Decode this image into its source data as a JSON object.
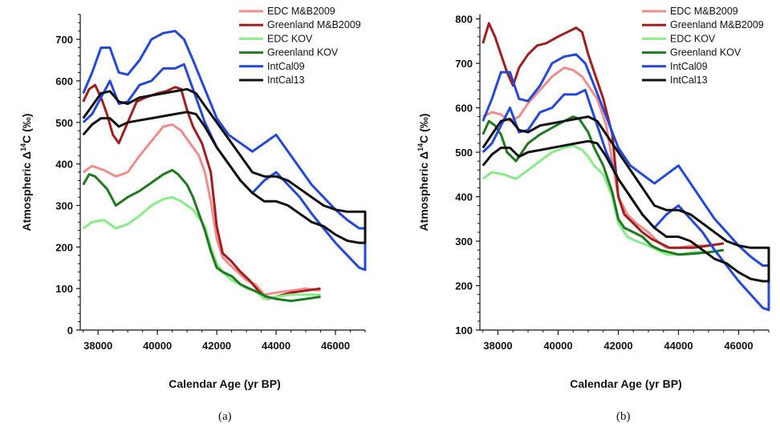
{
  "chart_data": [
    {
      "type": "line",
      "caption": "(a)",
      "xlabel": "Calendar Age (yr BP)",
      "ylabel": {
        "prefix": "Atmospheric Δ",
        "sup": "14",
        "suffix": "C (‰)"
      },
      "xlim": [
        37400,
        47000
      ],
      "ylim": [
        0,
        760
      ],
      "xticks": [
        38000,
        40000,
        42000,
        44000,
        46000
      ],
      "yticks": [
        0,
        100,
        200,
        300,
        400,
        500,
        600,
        700
      ],
      "grid": false,
      "legend": "top-right",
      "series": [
        {
          "name": "EDC M&B2009",
          "color": "#f08c8c",
          "x": [
            37500,
            37800,
            38200,
            38600,
            39000,
            39400,
            39800,
            40200,
            40500,
            40800,
            41000,
            41200,
            41400,
            41600,
            41800,
            42000,
            42200,
            42400,
            42700,
            43000,
            43300,
            43600,
            44000,
            44500,
            45000,
            45500
          ],
          "y": [
            380,
            395,
            385,
            370,
            380,
            420,
            455,
            490,
            495,
            480,
            460,
            440,
            420,
            380,
            310,
            220,
            175,
            160,
            140,
            120,
            110,
            85,
            90,
            95,
            100,
            95
          ]
        },
        {
          "name": "Greenland M&B2009",
          "color": "#a01e1e",
          "x": [
            37500,
            37700,
            37900,
            38100,
            38300,
            38500,
            38700,
            39000,
            39300,
            39600,
            40000,
            40300,
            40600,
            40800,
            41000,
            41200,
            41500,
            41800,
            42000,
            42200,
            42500,
            42800,
            43100,
            43400,
            43700,
            44000,
            44500,
            45000,
            45500
          ],
          "y": [
            550,
            580,
            590,
            560,
            520,
            470,
            450,
            500,
            550,
            560,
            570,
            575,
            585,
            580,
            530,
            490,
            450,
            380,
            250,
            185,
            165,
            140,
            120,
            95,
            75,
            80,
            90,
            95,
            100
          ]
        },
        {
          "name": "EDC KOV",
          "color": "#88ec88",
          "x": [
            37500,
            37800,
            38200,
            38600,
            39000,
            39400,
            39800,
            40200,
            40500,
            40800,
            41000,
            41200,
            41400,
            41600,
            41800,
            42000,
            42200,
            42500,
            42800,
            43000,
            43300,
            43600,
            44000,
            44500,
            45000,
            45500
          ],
          "y": [
            245,
            260,
            265,
            245,
            255,
            275,
            300,
            315,
            320,
            310,
            300,
            290,
            270,
            250,
            200,
            160,
            140,
            120,
            110,
            100,
            95,
            75,
            80,
            85,
            85,
            85
          ]
        },
        {
          "name": "Greenland KOV",
          "color": "#1f7a1f",
          "x": [
            37500,
            37700,
            37900,
            38100,
            38300,
            38600,
            39000,
            39400,
            39800,
            40200,
            40500,
            40700,
            41000,
            41200,
            41400,
            41600,
            41800,
            42000,
            42200,
            42500,
            42800,
            43100,
            43400,
            43700,
            44000,
            44500,
            45000,
            45500
          ],
          "y": [
            350,
            375,
            370,
            355,
            340,
            300,
            320,
            335,
            355,
            375,
            385,
            375,
            350,
            320,
            280,
            240,
            190,
            150,
            140,
            130,
            110,
            100,
            90,
            80,
            75,
            70,
            75,
            80
          ]
        },
        {
          "name": "IntCal09",
          "color": "#2448d8",
          "x": [
            37500,
            37800,
            38100,
            38400,
            38700,
            39000,
            39400,
            39800,
            40200,
            40600,
            40900,
            41200,
            41600,
            42000,
            42400,
            42800,
            43200,
            43600,
            44000,
            44400,
            44800,
            45200,
            45600,
            46000,
            46400,
            46800,
            47000,
            47000,
            46800,
            46400,
            46000,
            45600,
            45200,
            44800,
            44400,
            44000,
            43600,
            43200,
            42800,
            42400,
            42000,
            41600,
            41200,
            40900,
            40600,
            40200,
            39800,
            39400,
            39000,
            38700,
            38400,
            38100,
            37800,
            37500
          ],
          "y": [
            570,
            620,
            680,
            680,
            620,
            615,
            650,
            700,
            715,
            720,
            700,
            650,
            580,
            510,
            470,
            450,
            430,
            450,
            470,
            430,
            390,
            350,
            320,
            290,
            265,
            245,
            245,
            145,
            150,
            180,
            210,
            245,
            280,
            320,
            350,
            380,
            360,
            330,
            360,
            400,
            440,
            500,
            580,
            640,
            630,
            630,
            600,
            590,
            550,
            545,
            600,
            560,
            520,
            500
          ]
        },
        {
          "name": "IntCal13",
          "color": "#111111",
          "x": [
            37500,
            37800,
            38100,
            38400,
            38700,
            39000,
            39400,
            39800,
            40200,
            40600,
            41000,
            41300,
            41600,
            42000,
            42400,
            42800,
            43200,
            43600,
            44000,
            44400,
            44800,
            45200,
            45600,
            46000,
            46400,
            46800,
            47000,
            47000,
            46800,
            46400,
            46000,
            45600,
            45200,
            44800,
            44400,
            44000,
            43600,
            43200,
            42800,
            42400,
            42000,
            41600,
            41300,
            41000,
            40600,
            40200,
            39800,
            39400,
            39000,
            38700,
            38400,
            38100,
            37800,
            37500
          ],
          "y": [
            510,
            540,
            570,
            575,
            550,
            545,
            560,
            565,
            570,
            575,
            580,
            570,
            540,
            500,
            460,
            420,
            380,
            370,
            370,
            360,
            340,
            320,
            300,
            290,
            285,
            285,
            285,
            210,
            210,
            215,
            230,
            250,
            260,
            280,
            300,
            310,
            310,
            330,
            360,
            400,
            440,
            490,
            520,
            525,
            520,
            515,
            510,
            505,
            500,
            490,
            510,
            510,
            495,
            470
          ]
        }
      ]
    },
    {
      "type": "line",
      "caption": "(b)",
      "xlabel": "Calendar Age (yr BP)",
      "ylabel": {
        "prefix": "Atmospheric Δ",
        "sup": "14",
        "suffix": "C (‰)"
      },
      "xlim": [
        37400,
        47000
      ],
      "ylim": [
        100,
        810
      ],
      "xticks": [
        38000,
        40000,
        42000,
        44000,
        46000
      ],
      "yticks": [
        100,
        200,
        300,
        400,
        500,
        600,
        700,
        800
      ],
      "grid": false,
      "legend": "top-right",
      "series": [
        {
          "name": "EDC M&B2009",
          "color": "#f08c8c",
          "x": [
            37500,
            37800,
            38100,
            38400,
            38700,
            39000,
            39400,
            39800,
            40200,
            40500,
            40800,
            41000,
            41300,
            41600,
            41800,
            42000,
            42300,
            42600,
            43000,
            43300,
            43600,
            44000,
            44500,
            45000,
            45500
          ],
          "y": [
            580,
            590,
            585,
            570,
            580,
            610,
            640,
            670,
            690,
            685,
            670,
            650,
            620,
            560,
            480,
            400,
            360,
            340,
            320,
            300,
            285,
            285,
            290,
            290,
            295
          ]
        },
        {
          "name": "Greenland M&B2009",
          "color": "#a01e1e",
          "x": [
            37500,
            37700,
            37900,
            38100,
            38300,
            38500,
            38700,
            39000,
            39300,
            39600,
            40000,
            40300,
            40600,
            40800,
            41000,
            41200,
            41500,
            41800,
            42000,
            42200,
            42500,
            42800,
            43100,
            43400,
            43700,
            44000,
            44500,
            45000,
            45500
          ],
          "y": [
            745,
            790,
            760,
            720,
            680,
            650,
            690,
            720,
            740,
            745,
            760,
            770,
            780,
            770,
            720,
            680,
            620,
            540,
            400,
            360,
            340,
            320,
            305,
            295,
            285,
            285,
            285,
            290,
            295
          ]
        },
        {
          "name": "EDC KOV",
          "color": "#88ec88",
          "x": [
            37500,
            37800,
            38200,
            38600,
            39000,
            39400,
            39800,
            40200,
            40500,
            40800,
            41000,
            41200,
            41500,
            41800,
            42000,
            42300,
            42600,
            43000,
            43300,
            43600,
            44000,
            44500,
            45000,
            45500
          ],
          "y": [
            440,
            455,
            450,
            440,
            460,
            480,
            500,
            510,
            515,
            505,
            490,
            470,
            450,
            400,
            340,
            310,
            300,
            290,
            280,
            270,
            270,
            275,
            275,
            280
          ]
        },
        {
          "name": "Greenland KOV",
          "color": "#1f7a1f",
          "x": [
            37500,
            37700,
            37900,
            38100,
            38300,
            38600,
            39000,
            39400,
            39800,
            40200,
            40500,
            40700,
            41000,
            41200,
            41500,
            41800,
            42000,
            42200,
            42500,
            42800,
            43100,
            43400,
            43700,
            44000,
            44500,
            45000,
            45500
          ],
          "y": [
            540,
            570,
            560,
            540,
            500,
            480,
            520,
            540,
            555,
            570,
            580,
            575,
            545,
            510,
            470,
            410,
            350,
            330,
            320,
            310,
            290,
            280,
            275,
            270,
            272,
            275,
            280
          ]
        },
        {
          "name": "IntCal09",
          "color": "#2448d8",
          "x": [
            37500,
            37800,
            38100,
            38400,
            38700,
            39000,
            39400,
            39800,
            40200,
            40600,
            40900,
            41200,
            41600,
            42000,
            42400,
            42800,
            43200,
            43600,
            44000,
            44400,
            44800,
            45200,
            45600,
            46000,
            46400,
            46800,
            47000,
            47000,
            46800,
            46400,
            46000,
            45600,
            45200,
            44800,
            44400,
            44000,
            43600,
            43200,
            42800,
            42400,
            42000,
            41600,
            41200,
            40900,
            40600,
            40200,
            39800,
            39400,
            39000,
            38700,
            38400,
            38100,
            37800,
            37500
          ],
          "y": [
            570,
            620,
            680,
            680,
            620,
            615,
            650,
            700,
            715,
            720,
            700,
            650,
            580,
            510,
            470,
            450,
            430,
            450,
            470,
            430,
            390,
            350,
            320,
            290,
            265,
            245,
            245,
            145,
            150,
            180,
            210,
            245,
            280,
            320,
            350,
            380,
            360,
            330,
            360,
            400,
            440,
            500,
            580,
            640,
            630,
            630,
            600,
            590,
            550,
            545,
            600,
            560,
            520,
            500
          ]
        },
        {
          "name": "IntCal13",
          "color": "#111111",
          "x": [
            37500,
            37800,
            38100,
            38400,
            38700,
            39000,
            39400,
            39800,
            40200,
            40600,
            41000,
            41300,
            41600,
            42000,
            42400,
            42800,
            43200,
            43600,
            44000,
            44400,
            44800,
            45200,
            45600,
            46000,
            46400,
            46800,
            47000,
            47000,
            46800,
            46400,
            46000,
            45600,
            45200,
            44800,
            44400,
            44000,
            43600,
            43200,
            42800,
            42400,
            42000,
            41600,
            41300,
            41000,
            40600,
            40200,
            39800,
            39400,
            39000,
            38700,
            38400,
            38100,
            37800,
            37500
          ],
          "y": [
            510,
            540,
            570,
            575,
            550,
            545,
            560,
            565,
            570,
            575,
            580,
            570,
            540,
            500,
            460,
            420,
            380,
            370,
            370,
            360,
            340,
            320,
            300,
            290,
            285,
            285,
            285,
            210,
            210,
            215,
            230,
            250,
            260,
            280,
            300,
            310,
            310,
            330,
            360,
            400,
            440,
            490,
            520,
            525,
            520,
            515,
            510,
            505,
            500,
            490,
            510,
            510,
            495,
            470
          ]
        }
      ]
    }
  ]
}
